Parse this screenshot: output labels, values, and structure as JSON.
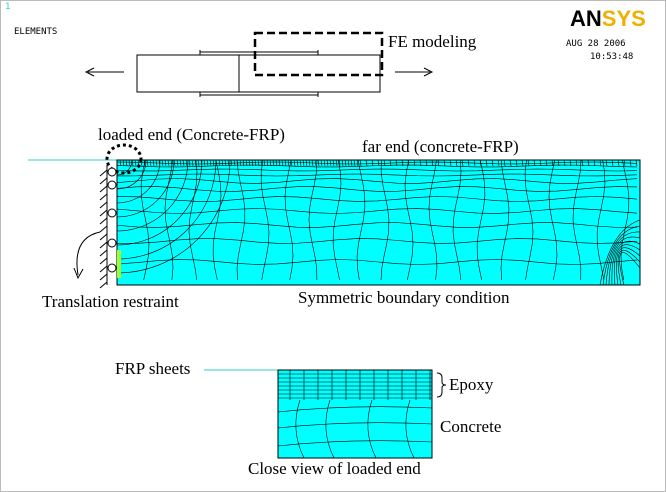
{
  "window": {
    "number": "1",
    "label": "ELEMENTS",
    "logo": {
      "dark": "AN",
      "light": "SYS"
    },
    "date": "AUG 28 2006",
    "time": "10:53:48"
  },
  "annotations": {
    "fe_modeling": "FE modeling",
    "loaded_end": "loaded end (Concrete-FRP)",
    "far_end": "far end (concrete-FRP)",
    "restraint": "Translation restraint",
    "symmetric": "Symmetric boundary condition"
  },
  "close_view": {
    "frp": "FRP sheets",
    "epoxy": "Epoxy",
    "concrete": "Concrete",
    "caption": "Close view of loaded end"
  }
}
